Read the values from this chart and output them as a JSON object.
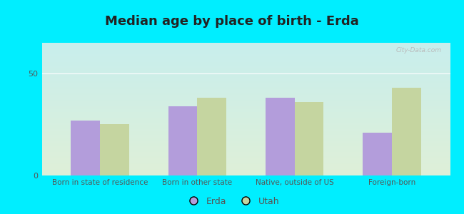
{
  "title": "Median age by place of birth - Erda",
  "categories": [
    "Born in state of residence",
    "Born in other state",
    "Native, outside of US",
    "Foreign-born"
  ],
  "erda_values": [
    27,
    34,
    38,
    21
  ],
  "utah_values": [
    25,
    38,
    36,
    43
  ],
  "erda_color": "#b39ddb",
  "utah_color": "#c5d5a0",
  "outer_bg": "#00eeff",
  "plot_bg_top": "#c8eeed",
  "plot_bg_bottom": "#dff0d8",
  "ylim": [
    0,
    65
  ],
  "yticks": [
    0,
    50
  ],
  "bar_width": 0.3,
  "title_fontsize": 13,
  "legend_labels": [
    "Erda",
    "Utah"
  ],
  "watermark": "City-Data.com",
  "grid_color": "#ffffff",
  "tick_color": "#555555",
  "tick_fontsize": 8
}
